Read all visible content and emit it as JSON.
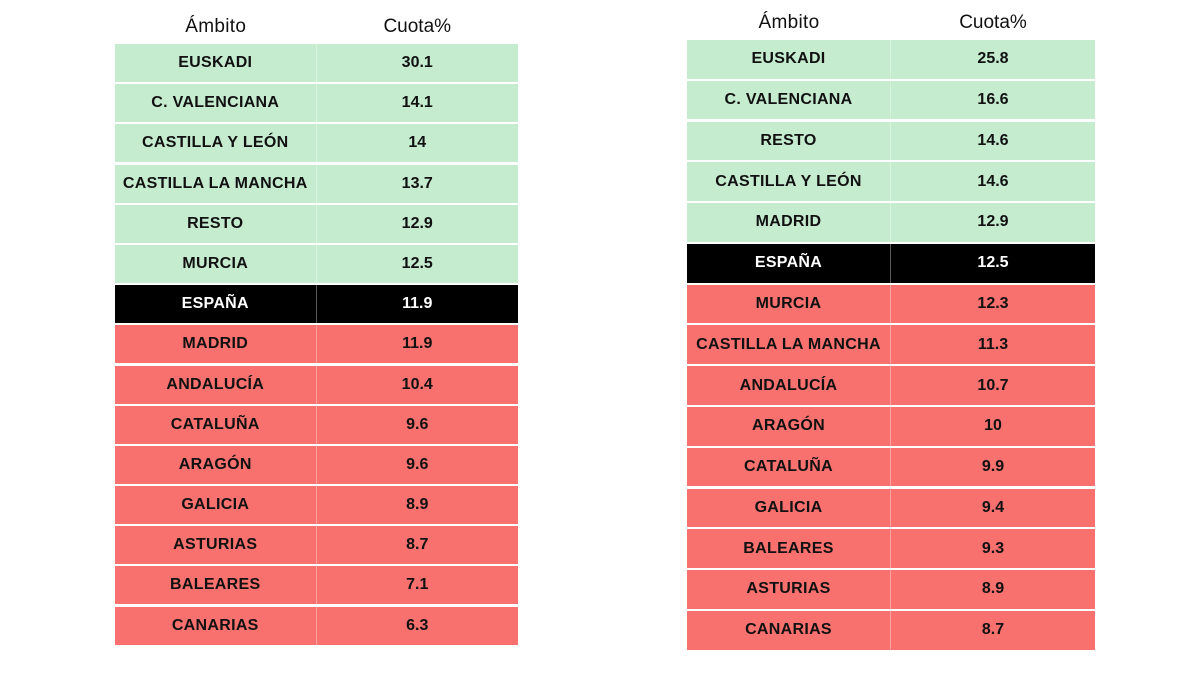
{
  "colors": {
    "above": "#c6ecd0",
    "below": "#f8716f",
    "spain": "#000000",
    "text_dark": "#111111",
    "text_light": "#ffffff"
  },
  "chart_data": [
    {
      "type": "table",
      "columns": [
        "Ámbito",
        "Cuota%"
      ],
      "rows": [
        {
          "ambito": "EUSKADI",
          "cuota": "30.1",
          "group": "above"
        },
        {
          "ambito": "C. VALENCIANA",
          "cuota": "14.1",
          "group": "above"
        },
        {
          "ambito": "CASTILLA Y LEÓN",
          "cuota": "14",
          "group": "above"
        },
        {
          "ambito": "CASTILLA LA MANCHA",
          "cuota": "13.7",
          "group": "above"
        },
        {
          "ambito": "RESTO",
          "cuota": "12.9",
          "group": "above"
        },
        {
          "ambito": "MURCIA",
          "cuota": "12.5",
          "group": "above"
        },
        {
          "ambito": "ESPAÑA",
          "cuota": "11.9",
          "group": "spain"
        },
        {
          "ambito": "MADRID",
          "cuota": "11.9",
          "group": "below"
        },
        {
          "ambito": "ANDALUCÍA",
          "cuota": "10.4",
          "group": "below"
        },
        {
          "ambito": "CATALUÑA",
          "cuota": "9.6",
          "group": "below"
        },
        {
          "ambito": "ARAGÓN",
          "cuota": "9.6",
          "group": "below"
        },
        {
          "ambito": "GALICIA",
          "cuota": "8.9",
          "group": "below"
        },
        {
          "ambito": "ASTURIAS",
          "cuota": "8.7",
          "group": "below"
        },
        {
          "ambito": "BALEARES",
          "cuota": "7.1",
          "group": "below"
        },
        {
          "ambito": "CANARIAS",
          "cuota": "6.3",
          "group": "below"
        }
      ]
    },
    {
      "type": "table",
      "columns": [
        "Ámbito",
        "Cuota%"
      ],
      "rows": [
        {
          "ambito": "EUSKADI",
          "cuota": "25.8",
          "group": "above"
        },
        {
          "ambito": "C. VALENCIANA",
          "cuota": "16.6",
          "group": "above"
        },
        {
          "ambito": "RESTO",
          "cuota": "14.6",
          "group": "above"
        },
        {
          "ambito": "CASTILLA Y LEÓN",
          "cuota": "14.6",
          "group": "above"
        },
        {
          "ambito": "MADRID",
          "cuota": "12.9",
          "group": "above"
        },
        {
          "ambito": "ESPAÑA",
          "cuota": "12.5",
          "group": "spain"
        },
        {
          "ambito": "MURCIA",
          "cuota": "12.3",
          "group": "below"
        },
        {
          "ambito": "CASTILLA LA MANCHA",
          "cuota": "11.3",
          "group": "below"
        },
        {
          "ambito": "ANDALUCÍA",
          "cuota": "10.7",
          "group": "below"
        },
        {
          "ambito": "ARAGÓN",
          "cuota": "10",
          "group": "below"
        },
        {
          "ambito": "CATALUÑA",
          "cuota": "9.9",
          "group": "below"
        },
        {
          "ambito": "GALICIA",
          "cuota": "9.4",
          "group": "below"
        },
        {
          "ambito": "BALEARES",
          "cuota": "9.3",
          "group": "below"
        },
        {
          "ambito": "ASTURIAS",
          "cuota": "8.9",
          "group": "below"
        },
        {
          "ambito": "CANARIAS",
          "cuota": "8.7",
          "group": "below"
        }
      ]
    }
  ]
}
